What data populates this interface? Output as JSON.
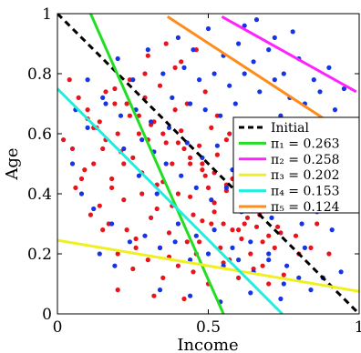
{
  "chart_data": {
    "type": "scatter",
    "title": "",
    "xlabel": "Income",
    "ylabel": "Age",
    "xlim": [
      0,
      1
    ],
    "ylim": [
      0,
      1
    ],
    "xticks": [
      "0",
      "0.5",
      "1"
    ],
    "yticks": [
      "0",
      "0.2",
      "0.4",
      "0.6",
      "0.8",
      "1"
    ],
    "grid": false,
    "legend_position": "right",
    "scatter_colors": {
      "red": "#e8141c",
      "blue": "#1434e6"
    },
    "lines": [
      {
        "name": "Initial",
        "label": "Initial",
        "color": "#000000",
        "dash": "dashed",
        "x": [
          0.0,
          1.0
        ],
        "y": [
          1.0,
          0.0
        ]
      },
      {
        "name": "pi1",
        "label": "π₁ = 0.263",
        "color": "#22dd22",
        "dash": "solid",
        "x": [
          0.11,
          0.55
        ],
        "y": [
          1.0,
          0.0
        ]
      },
      {
        "name": "pi2",
        "label": "π₂ = 0.258",
        "color": "#ff22ff",
        "dash": "solid",
        "x": [
          0.545,
          0.99
        ],
        "y": [
          0.99,
          0.74
        ]
      },
      {
        "name": "pi3",
        "label": "π₃ = 0.202",
        "color": "#f0f020",
        "dash": "solid",
        "x": [
          0.0,
          1.0
        ],
        "y": [
          0.245,
          0.075
        ]
      },
      {
        "name": "pi4",
        "label": "π₄ = 0.153",
        "color": "#22eedd",
        "dash": "solid",
        "x": [
          0.0,
          0.745
        ],
        "y": [
          0.75,
          0.0
        ]
      },
      {
        "name": "pi5",
        "label": "π₅ = 0.124",
        "color": "#ff8c1a",
        "dash": "solid",
        "x": [
          0.365,
          0.99
        ],
        "y": [
          0.99,
          0.58
        ]
      }
    ],
    "legend": [
      {
        "label": "Initial",
        "color": "#000000",
        "dash": "dashed"
      },
      {
        "label": "π₁ = 0.263",
        "color": "#22dd22",
        "dash": "solid"
      },
      {
        "label": "π₂ = 0.258",
        "color": "#ff22ff",
        "dash": "solid"
      },
      {
        "label": "π₃ = 0.202",
        "color": "#f0f020",
        "dash": "solid"
      },
      {
        "label": "π₄ = 0.153",
        "color": "#22eedd",
        "dash": "solid"
      },
      {
        "label": "π₅ = 0.124",
        "color": "#ff8c1a",
        "dash": "solid"
      }
    ],
    "series": [
      {
        "color": "red",
        "x": [
          0.08,
          0.12,
          0.15,
          0.18,
          0.2,
          0.22,
          0.25,
          0.28,
          0.3,
          0.33,
          0.35,
          0.38,
          0.4,
          0.42,
          0.45,
          0.48,
          0.5,
          0.52,
          0.55,
          0.58,
          0.6,
          0.62,
          0.65,
          0.1,
          0.13,
          0.16,
          0.19,
          0.21,
          0.24,
          0.27,
          0.29,
          0.32,
          0.36,
          0.39,
          0.41,
          0.44,
          0.47,
          0.49,
          0.53,
          0.56,
          0.59,
          0.63,
          0.66,
          0.7,
          0.05,
          0.09,
          0.14,
          0.17,
          0.23,
          0.26,
          0.31,
          0.34,
          0.37,
          0.43,
          0.46,
          0.51,
          0.54,
          0.57,
          0.61,
          0.64,
          0.68,
          0.72,
          0.02,
          0.06,
          0.11,
          0.2,
          0.25,
          0.3,
          0.35,
          0.4,
          0.45,
          0.5,
          0.55,
          0.6,
          0.65,
          0.7,
          0.75,
          0.8,
          0.18,
          0.22,
          0.28,
          0.33,
          0.38,
          0.44,
          0.48,
          0.52,
          0.58,
          0.62,
          0.68,
          0.74,
          0.12,
          0.16,
          0.24,
          0.29,
          0.34,
          0.39,
          0.43,
          0.49,
          0.53,
          0.57,
          0.63,
          0.69,
          0.3,
          0.36,
          0.41,
          0.46,
          0.51,
          0.56,
          0.61,
          0.66,
          0.71,
          0.76,
          0.81,
          0.86,
          0.15,
          0.26,
          0.37,
          0.47,
          0.59,
          0.67,
          0.73,
          0.79,
          0.84,
          0.9,
          0.04,
          0.07,
          0.1,
          0.14,
          0.19,
          0.23,
          0.27,
          0.31,
          0.35,
          0.4,
          0.44,
          0.48,
          0.52,
          0.56,
          0.6,
          0.64,
          0.2,
          0.32,
          0.42,
          0.54
        ],
        "y": [
          0.45,
          0.5,
          0.55,
          0.42,
          0.6,
          0.38,
          0.52,
          0.47,
          0.58,
          0.35,
          0.44,
          0.5,
          0.4,
          0.55,
          0.33,
          0.48,
          0.42,
          0.37,
          0.3,
          0.45,
          0.28,
          0.4,
          0.35,
          0.65,
          0.62,
          0.58,
          0.7,
          0.54,
          0.66,
          0.6,
          0.72,
          0.64,
          0.57,
          0.68,
          0.61,
          0.5,
          0.56,
          0.46,
          0.53,
          0.41,
          0.38,
          0.32,
          0.29,
          0.26,
          0.55,
          0.48,
          0.36,
          0.3,
          0.28,
          0.25,
          0.32,
          0.22,
          0.27,
          0.24,
          0.2,
          0.3,
          0.22,
          0.18,
          0.25,
          0.2,
          0.16,
          0.22,
          0.58,
          0.42,
          0.33,
          0.2,
          0.15,
          0.18,
          0.12,
          0.16,
          0.14,
          0.1,
          0.17,
          0.12,
          0.15,
          0.1,
          0.13,
          0.2,
          0.45,
          0.5,
          0.4,
          0.43,
          0.36,
          0.39,
          0.31,
          0.34,
          0.28,
          0.3,
          0.24,
          0.27,
          0.62,
          0.74,
          0.78,
          0.8,
          0.76,
          0.82,
          0.7,
          0.74,
          0.66,
          0.6,
          0.55,
          0.5,
          0.86,
          0.9,
          0.84,
          0.88,
          0.62,
          0.58,
          0.54,
          0.48,
          0.45,
          0.4,
          0.36,
          0.3,
          0.28,
          0.22,
          0.19,
          0.24,
          0.36,
          0.33,
          0.29,
          0.26,
          0.22,
          0.2,
          0.78,
          0.72,
          0.68,
          0.64,
          0.75,
          0.7,
          0.66,
          0.63,
          0.6,
          0.57,
          0.52,
          0.5,
          0.47,
          0.43,
          0.4,
          0.36,
          0.08,
          0.06,
          0.05,
          0.04
        ]
      },
      {
        "color": "blue",
        "x": [
          0.4,
          0.45,
          0.5,
          0.55,
          0.6,
          0.65,
          0.7,
          0.75,
          0.8,
          0.85,
          0.9,
          0.95,
          0.42,
          0.47,
          0.52,
          0.57,
          0.62,
          0.67,
          0.72,
          0.77,
          0.82,
          0.87,
          0.92,
          0.38,
          0.44,
          0.49,
          0.54,
          0.59,
          0.64,
          0.69,
          0.74,
          0.79,
          0.84,
          0.89,
          0.94,
          0.3,
          0.35,
          0.2,
          0.25,
          0.15,
          0.1,
          0.05,
          0.08,
          0.12,
          0.18,
          0.22,
          0.27,
          0.33,
          0.37,
          0.43,
          0.48,
          0.53,
          0.58,
          0.63,
          0.68,
          0.73,
          0.78,
          0.83,
          0.88,
          0.93,
          0.97,
          0.26,
          0.31,
          0.36,
          0.41,
          0.46,
          0.51,
          0.56,
          0.61,
          0.66,
          0.71,
          0.76,
          0.81,
          0.86,
          0.91,
          0.14,
          0.19,
          0.24,
          0.29,
          0.34,
          0.39,
          0.44,
          0.5,
          0.55,
          0.6,
          0.65,
          0.7,
          0.75,
          0.8,
          0.06,
          0.1,
          0.16,
          0.21,
          0.28,
          0.32,
          0.4,
          0.46,
          0.52,
          0.58,
          0.64,
          0.7,
          0.76,
          0.82,
          0.88,
          0.94,
          0.34,
          0.44,
          0.54,
          0.64,
          0.74,
          0.84,
          0.62,
          0.72,
          0.66,
          0.78
        ],
        "y": [
          0.92,
          0.88,
          0.95,
          0.86,
          0.9,
          0.84,
          0.88,
          0.8,
          0.85,
          0.78,
          0.82,
          0.75,
          0.82,
          0.78,
          0.8,
          0.76,
          0.8,
          0.74,
          0.78,
          0.72,
          0.7,
          0.74,
          0.68,
          0.72,
          0.7,
          0.68,
          0.66,
          0.7,
          0.64,
          0.62,
          0.66,
          0.6,
          0.62,
          0.58,
          0.6,
          0.88,
          0.8,
          0.85,
          0.78,
          0.72,
          0.62,
          0.5,
          0.4,
          0.35,
          0.3,
          0.55,
          0.46,
          0.4,
          0.62,
          0.57,
          0.52,
          0.56,
          0.48,
          0.5,
          0.46,
          0.5,
          0.44,
          0.46,
          0.4,
          0.42,
          0.36,
          0.68,
          0.64,
          0.5,
          0.46,
          0.42,
          0.38,
          0.42,
          0.34,
          0.38,
          0.32,
          0.36,
          0.3,
          0.34,
          0.28,
          0.2,
          0.16,
          0.24,
          0.26,
          0.22,
          0.24,
          0.18,
          0.2,
          0.16,
          0.18,
          0.14,
          0.2,
          0.1,
          0.12,
          0.68,
          0.78,
          0.7,
          0.66,
          0.58,
          0.54,
          0.3,
          0.26,
          0.28,
          0.22,
          0.24,
          0.18,
          0.16,
          0.22,
          0.12,
          0.14,
          0.08,
          0.06,
          0.04,
          0.07,
          0.05,
          0.08,
          0.96,
          0.92,
          0.98,
          0.94
        ]
      }
    ]
  }
}
